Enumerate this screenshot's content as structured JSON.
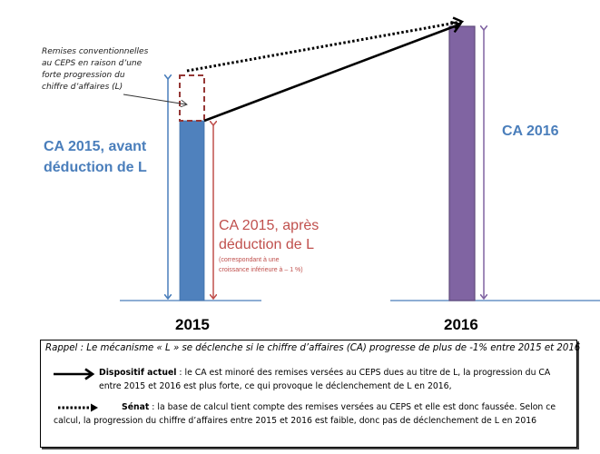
{
  "colors": {
    "bar_2015": "#4f81bd",
    "bar_2016": "#8064a2",
    "arrow_blue": "#4a7ebb",
    "arrow_red": "#c0504d",
    "arrow_purple": "#8064a2",
    "dashed_box": "#953735",
    "baseline": "#4a7ebb",
    "text_blue": "#4a7ebb",
    "text_red": "#c0504d"
  },
  "annotation": {
    "lines": [
      "Remises conventionnelles",
      "au CEPS en raison d’une",
      "forte progression du",
      "chiffre d’affaires (L)"
    ]
  },
  "labels": {
    "ca2015_before": [
      "CA 2015, avant",
      "déduction de L"
    ],
    "ca2015_after": [
      "CA 2015, après",
      "déduction de L"
    ],
    "ca2015_after_note": [
      "(correspondant  à une",
      "croissance  inférieure à – 1 %)"
    ],
    "ca2016": "CA 2016"
  },
  "years": {
    "y2015": "2015",
    "y2016": "2016"
  },
  "legend": {
    "rappel": "Rappel : Le mécanisme « L » se déclenche si le chiffre d’affaires (CA) progresse de plus de -1% entre 2015 et 2016",
    "items": [
      {
        "icon": "solid-arrow-icon",
        "title": "Dispositif actuel",
        "text": " : le CA est minoré des remises versées au CEPS dues au titre de L, la progression du CA entre 2015 et 2016 est plus forte, ce qui provoque le déclenchement  de L en 2016,"
      },
      {
        "icon": "dotted-arrow-icon",
        "title": "Sénat",
        "text": " : la base de calcul tient compte des remises versées au CEPS et elle est donc faussée. Selon ce calcul, la progression du chiffre d’affaires entre 2015 et 2016 est faible, donc pas de déclenchement  de L en 2016"
      }
    ]
  },
  "values": {
    "ca2015_before_relative": 0.83,
    "ca2015_after_relative": 0.66,
    "ca2016_relative": 1.0
  }
}
